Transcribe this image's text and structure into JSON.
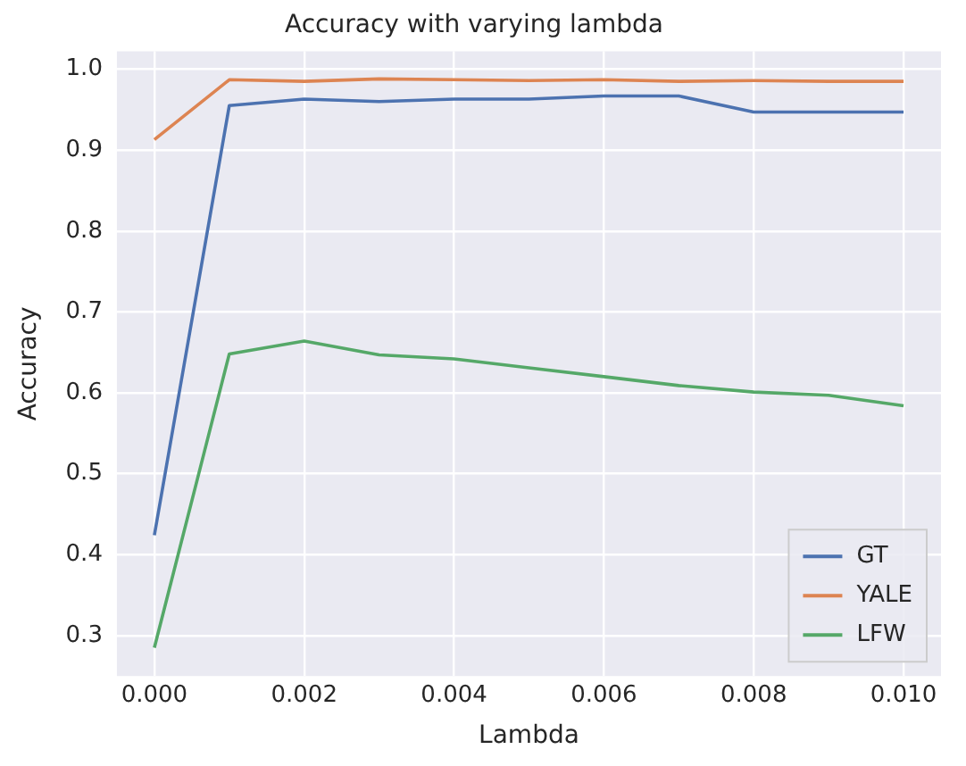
{
  "chart_data": {
    "type": "line",
    "title": "Accuracy with varying lambda",
    "xlabel": "Lambda",
    "ylabel": "Accuracy",
    "x": [
      0,
      0.001,
      0.002,
      0.003,
      0.004,
      0.005,
      0.006,
      0.007,
      0.008,
      0.009,
      0.01
    ],
    "series": [
      {
        "name": "GT",
        "color": "#4c72b0",
        "values": [
          0.424,
          0.955,
          0.963,
          0.96,
          0.963,
          0.963,
          0.967,
          0.967,
          0.947,
          0.947,
          0.947
        ]
      },
      {
        "name": "YALE",
        "color": "#dd8452",
        "values": [
          0.913,
          0.987,
          0.985,
          0.988,
          0.987,
          0.986,
          0.987,
          0.985,
          0.986,
          0.985,
          0.985
        ]
      },
      {
        "name": "LFW",
        "color": "#55a868",
        "values": [
          0.285,
          0.648,
          0.664,
          0.647,
          0.642,
          0.631,
          0.62,
          0.609,
          0.601,
          0.597,
          0.584
        ]
      }
    ],
    "xlim": [
      -0.0005,
      0.0105
    ],
    "xticks": [
      {
        "value": 0,
        "label": "0.000"
      },
      {
        "value": 0.002,
        "label": "0.002"
      },
      {
        "value": 0.004,
        "label": "0.004"
      },
      {
        "value": 0.006,
        "label": "0.006"
      },
      {
        "value": 0.008,
        "label": "0.008"
      },
      {
        "value": 0.01,
        "label": "0.010"
      }
    ],
    "ylim": [
      0.25,
      1.022
    ],
    "yticks": [
      0.3,
      0.4,
      0.5,
      0.6,
      0.7,
      0.8,
      0.9,
      {
        "value": 1.0,
        "label": "1.0"
      }
    ],
    "grid": true,
    "legend": "bottom right",
    "marker": "none",
    "line_style": "solid"
  }
}
